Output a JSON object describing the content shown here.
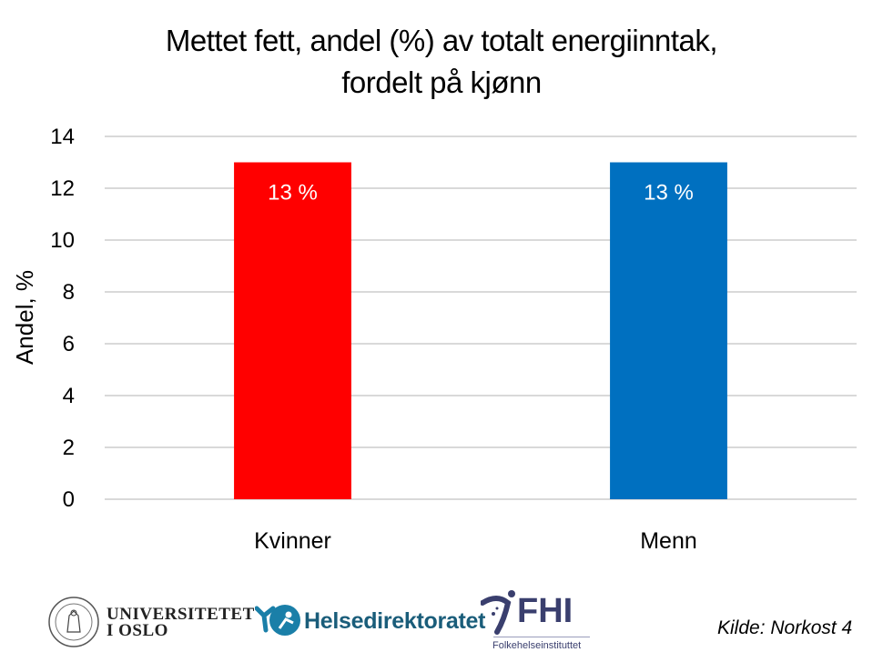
{
  "chart_data": {
    "type": "bar",
    "title": "Mettet fett, andel (%) av totalt energiinntak,",
    "title_line2": "fordelt på kjønn",
    "xlabel": "",
    "ylabel": "Andel, %",
    "categories": [
      "Kvinner",
      "Menn"
    ],
    "values": [
      13,
      13
    ],
    "data_labels": [
      "13 %",
      "13 %"
    ],
    "colors": [
      "#FF0000",
      "#0070C0"
    ],
    "ylim": [
      0,
      14
    ],
    "yticks": [
      "0",
      "2",
      "4",
      "6",
      "8",
      "10",
      "12",
      "14"
    ],
    "grid": true,
    "legend": "none"
  },
  "footer": {
    "uio_line1": "UNIVERSITETET",
    "uio_line2": "I OSLO",
    "helsedirektoratet": "Helsedirektoratet",
    "fhi": "FHI",
    "fhi_sub": "Folkehelseinstituttet",
    "source": "Kilde: Norkost 4"
  }
}
